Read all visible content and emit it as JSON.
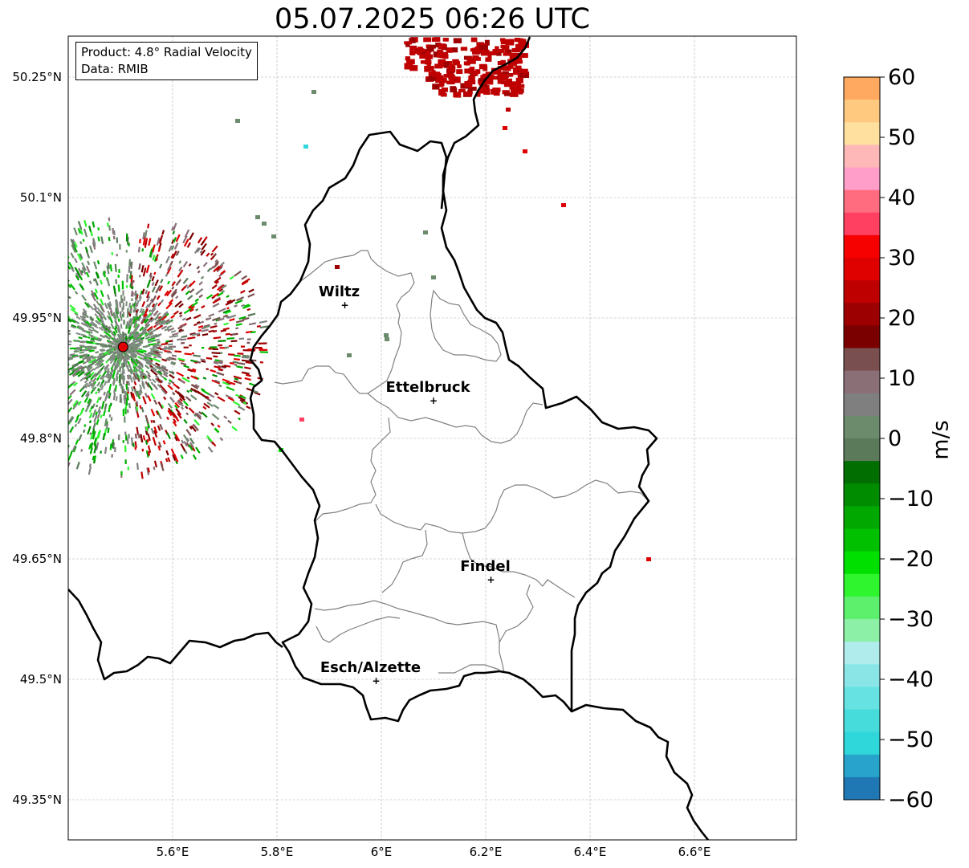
{
  "title": "05.07.2025 06:26 UTC",
  "info": {
    "product": "Product: 4.8° Radial Velocity",
    "data": "Data: RMIB"
  },
  "map": {
    "lon_ticks": [
      "5.6°E",
      "5.8°E",
      "6°E",
      "6.2°E",
      "6.4°E",
      "6.6°E"
    ],
    "lat_ticks": [
      "50.25°N",
      "50.1°N",
      "49.95°N",
      "49.8°N",
      "49.65°N",
      "49.5°N",
      "49.35°N"
    ],
    "cities": [
      {
        "name": "Wiltz",
        "lon": 5.93,
        "lat": 49.966
      },
      {
        "name": "Ettelbruck",
        "lon": 6.1,
        "lat": 49.847
      },
      {
        "name": "Findel",
        "lon": 6.21,
        "lat": 49.624
      },
      {
        "name": "Esch/Alzette",
        "lon": 5.99,
        "lat": 49.498
      }
    ],
    "radar_site": {
      "lon": 5.505,
      "lat": 49.914
    }
  },
  "colorbar": {
    "label": "m/s",
    "ticks": [
      "60",
      "50",
      "40",
      "30",
      "20",
      "10",
      "0",
      "−10",
      "−20",
      "−30",
      "−40",
      "−50",
      "−60"
    ]
  },
  "colors": {
    "border": "#000000",
    "cantons": "#808080",
    "radar_site": "#e00000",
    "velocity_scale": [
      "#1f77b4",
      "#28a4cc",
      "#2fd6da",
      "#47dcdc",
      "#66e2e2",
      "#8ae6e6",
      "#b1ecec",
      "#8cf0a6",
      "#5cf06c",
      "#2ef52e",
      "#00e000",
      "#00c000",
      "#00a800",
      "#008c00",
      "#006e00",
      "#5a7a5a",
      "#6c8a6c",
      "#7f7f7f",
      "#8a6f77",
      "#7a4f4f",
      "#7a0000",
      "#9c0000",
      "#bf0000",
      "#df0000",
      "#f70000",
      "#ff4060",
      "#ff6c80",
      "#ff9ec8",
      "#ffb8b8",
      "#ffe09e",
      "#ffca80",
      "#ffa860"
    ]
  }
}
